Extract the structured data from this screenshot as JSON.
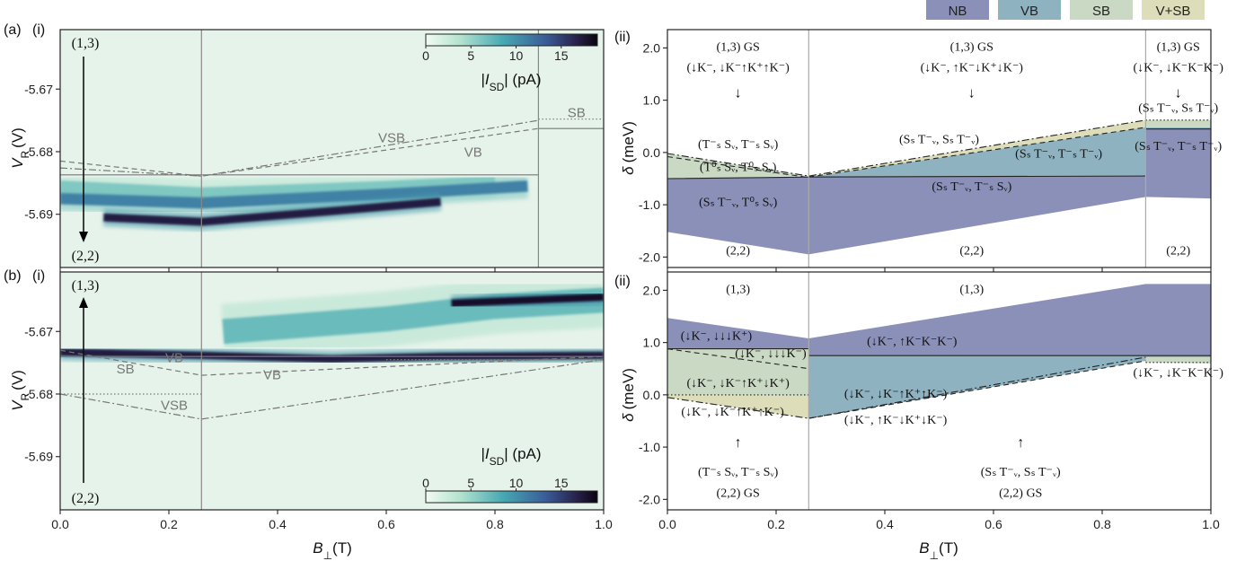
{
  "colors": {
    "NB": "#8a90b8",
    "VB": "#8fb2c1",
    "SB": "#cad9c3",
    "VSB": "#ddddba",
    "map_bg": "#e6f3ea",
    "line_grey": "#888888"
  },
  "legend": {
    "NB": "NB",
    "VB": "VB",
    "SB": "SB",
    "VSB": "V+SB"
  },
  "labels": {
    "a": "(a)",
    "b": "(b)",
    "i": "(i)",
    "ii": "(ii)",
    "xlabel_main": "B",
    "xlabel_sub": "⊥",
    "xlabel_unit": "(T)",
    "ylabel_left_main": "V",
    "ylabel_left_sub": "R",
    "ylabel_left_unit": "(V)",
    "ylabel_right_main": "δ",
    "ylabel_right_unit": "(meV)",
    "cbar_label_pre": "|I",
    "cbar_label_sub": "SD",
    "cbar_label_post": "| (pA)"
  },
  "chart_data": [
    {
      "panel": "a(i)",
      "type": "heatmap",
      "xlabel": "B⊥(T)",
      "ylabel": "VR (V)",
      "xlim": [
        0.0,
        1.0
      ],
      "ylim": [
        -5.6985,
        -5.6605
      ],
      "y_ticks": [
        -5.67,
        -5.68,
        -5.69
      ],
      "y_tick_labels": [
        "-5.67",
        "-5.68",
        "-5.69"
      ],
      "colorbar": {
        "label": "|ISD| (pA)",
        "ticks": [
          0,
          5,
          10,
          15
        ],
        "range": [
          0,
          19
        ]
      },
      "vertical_lines": [
        0.26,
        0.88
      ],
      "state_labels": [
        "(1,3)",
        "(2,2)"
      ],
      "line_labels": [
        "VSB",
        "VB",
        "SB"
      ],
      "guide_lines": [
        {
          "name": "VB",
          "style": "solid",
          "points": [
            [
              0.0,
              -5.6837
            ],
            [
              0.88,
              -5.6837
            ]
          ]
        },
        {
          "name": "SB",
          "style": "solid",
          "points": [
            [
              0.88,
              -5.6763
            ],
            [
              1.0,
              -5.6763
            ]
          ]
        },
        {
          "name": "SB-dashed",
          "style": "dashed",
          "points": [
            [
              0.0,
              -5.6815
            ],
            [
              0.26,
              -5.6839
            ],
            [
              0.88,
              -5.6763
            ]
          ]
        },
        {
          "name": "VSB",
          "style": "dashdot",
          "points": [
            [
              0.0,
              -5.6826
            ],
            [
              0.26,
              -5.6839
            ],
            [
              0.88,
              -5.675
            ]
          ]
        },
        {
          "name": "SB-dotted",
          "style": "dotted",
          "points": [
            [
              0.88,
              -5.6748
            ],
            [
              1.0,
              -5.6748
            ]
          ]
        }
      ],
      "bright_traces": [
        {
          "points": [
            [
              0.0,
              -5.6857
            ],
            [
              0.26,
              -5.6868
            ],
            [
              0.6,
              -5.6858
            ],
            [
              0.8,
              -5.685
            ]
          ],
          "width_V": 0.0022,
          "level": 6
        },
        {
          "points": [
            [
              0.0,
              -5.6875
            ],
            [
              0.26,
              -5.6882
            ],
            [
              0.6,
              -5.6868
            ],
            [
              0.86,
              -5.6855
            ]
          ],
          "width_V": 0.0018,
          "level": 11
        },
        {
          "points": [
            [
              0.08,
              -5.6905
            ],
            [
              0.26,
              -5.6912
            ],
            [
              0.5,
              -5.6895
            ],
            [
              0.7,
              -5.688
            ]
          ],
          "width_V": 0.0013,
          "level": 17
        },
        {
          "points": [
            [
              0.89,
              -5.6855
            ],
            [
              1.0,
              -5.6855
            ]
          ],
          "width_V": 0.0012,
          "level": 17
        }
      ]
    },
    {
      "panel": "b(i)",
      "type": "heatmap",
      "xlabel": "B⊥(T)",
      "ylabel": "VR (V)",
      "xlim": [
        0.0,
        1.0
      ],
      "ylim": [
        -5.6985,
        -5.6605
      ],
      "y_ticks": [
        -5.67,
        -5.68,
        -5.69
      ],
      "y_tick_labels": [
        "-5.67",
        "-5.68",
        "-5.69"
      ],
      "colorbar": {
        "label": "|ISD| (pA)",
        "ticks": [
          0,
          5,
          10,
          15
        ],
        "range": [
          0,
          19
        ]
      },
      "vertical_lines": [
        0.26
      ],
      "state_labels": [
        "(1,3)",
        "(2,2)"
      ],
      "line_labels": [
        "SB",
        "VB",
        "VB",
        "VSB"
      ],
      "guide_lines": [
        {
          "name": "VB",
          "style": "solid",
          "points": [
            [
              0.0,
              -5.674
            ],
            [
              1.0,
              -5.674
            ]
          ]
        },
        {
          "name": "SB-dotted",
          "style": "dotted",
          "points": [
            [
              0.0,
              -5.68
            ],
            [
              0.26,
              -5.68
            ]
          ]
        },
        {
          "name": "SB-dashed",
          "style": "dashed",
          "points": [
            [
              0.0,
              -5.673
            ],
            [
              0.26,
              -5.677
            ],
            [
              1.0,
              -5.674
            ]
          ]
        },
        {
          "name": "VSB",
          "style": "dashdot",
          "points": [
            [
              0.0,
              -5.68
            ],
            [
              0.26,
              -5.684
            ],
            [
              1.0,
              -5.6745
            ]
          ]
        },
        {
          "name": "upper-dotted",
          "style": "dotted",
          "points": [
            [
              0.6,
              -5.6745
            ],
            [
              1.0,
              -5.6745
            ]
          ]
        }
      ],
      "bright_traces": [
        {
          "points": [
            [
              0.0,
              -5.6733
            ],
            [
              0.26,
              -5.6738
            ],
            [
              0.5,
              -5.6744
            ],
            [
              0.7,
              -5.674
            ],
            [
              1.0,
              -5.6738
            ]
          ],
          "width_V": 0.0012,
          "level": 17
        },
        {
          "points": [
            [
              0.3,
              -5.67
            ],
            [
              0.6,
              -5.668
            ],
            [
              0.8,
              -5.666
            ],
            [
              1.0,
              -5.665
            ]
          ],
          "width_V": 0.004,
          "level": 7
        },
        {
          "points": [
            [
              0.72,
              -5.6655
            ],
            [
              1.0,
              -5.6645
            ]
          ],
          "width_V": 0.0012,
          "level": 18
        }
      ]
    },
    {
      "panel": "a(ii)",
      "type": "area",
      "xlabel": "B⊥(T)",
      "ylabel": "δ (meV)",
      "xlim": [
        0.0,
        1.0
      ],
      "ylim": [
        -2.2,
        2.35
      ],
      "y_ticks": [
        2.0,
        1.0,
        0.0,
        -1.0,
        -2.0
      ],
      "y_tick_labels": [
        "2.0",
        "1.0",
        "0.0",
        "-1.0",
        "-2.0"
      ],
      "vertical_lines": [
        0.26,
        0.88
      ],
      "regions": [
        {
          "name": "NB",
          "polygon": [
            [
              0.0,
              -0.5
            ],
            [
              0.26,
              -0.47
            ],
            [
              0.88,
              -0.45
            ],
            [
              0.88,
              0.45
            ],
            [
              1.0,
              0.45
            ],
            [
              1.0,
              -0.88
            ],
            [
              0.88,
              -0.85
            ],
            [
              0.26,
              -1.95
            ],
            [
              0.0,
              -1.52
            ]
          ]
        },
        {
          "name": "VB",
          "polygon": [
            [
              0.26,
              -0.47
            ],
            [
              0.88,
              -0.45
            ],
            [
              0.88,
              0.45
            ],
            [
              1.0,
              0.45
            ],
            [
              1.0,
              0.48
            ],
            [
              0.88,
              0.48
            ]
          ]
        },
        {
          "name": "SB",
          "polygon": [
            [
              0.0,
              -0.02
            ],
            [
              0.26,
              -0.45
            ],
            [
              0.0,
              -0.5
            ]
          ]
        },
        {
          "name": "VSB",
          "polygon": [
            [
              0.26,
              -0.45
            ],
            [
              0.88,
              0.62
            ],
            [
              0.88,
              0.48
            ],
            [
              0.26,
              -0.47
            ]
          ]
        },
        {
          "name": "SB-top",
          "polygon": [
            [
              0.88,
              0.48
            ],
            [
              1.0,
              0.48
            ],
            [
              1.0,
              0.62
            ],
            [
              0.88,
              0.62
            ]
          ]
        }
      ],
      "guide_lines": [
        {
          "style": "solid",
          "points": [
            [
              0.0,
              -0.5
            ],
            [
              0.26,
              -0.47
            ],
            [
              0.88,
              -0.45
            ]
          ]
        },
        {
          "style": "solid",
          "points": [
            [
              0.88,
              0.45
            ],
            [
              1.0,
              0.45
            ]
          ]
        },
        {
          "style": "dashed",
          "points": [
            [
              0.26,
              -0.47
            ],
            [
              0.88,
              0.48
            ]
          ]
        },
        {
          "style": "dashdot",
          "points": [
            [
              0.0,
              -0.02
            ],
            [
              0.26,
              -0.45
            ],
            [
              0.88,
              0.62
            ]
          ]
        },
        {
          "style": "dashed",
          "points": [
            [
              0.0,
              -0.08
            ],
            [
              0.26,
              -0.48
            ]
          ]
        },
        {
          "style": "dotted",
          "points": [
            [
              0.88,
              0.62
            ],
            [
              1.0,
              0.62
            ]
          ]
        }
      ],
      "annotations": [
        {
          "text": "(1,3) GS",
          "x": 0.13,
          "y": 1.95
        },
        {
          "text": "(↓K⁻, ↓K⁻↑K⁺↑K⁻)",
          "x": 0.13,
          "y": 1.55
        },
        {
          "text": "↓",
          "x": 0.13,
          "y": 1.05
        },
        {
          "text": "(1,3) GS",
          "x": 0.56,
          "y": 1.95
        },
        {
          "text": "(↓K⁻, ↑K⁻↓K⁺↓K⁻)",
          "x": 0.56,
          "y": 1.55
        },
        {
          "text": "↓",
          "x": 0.56,
          "y": 1.05
        },
        {
          "text": "(1,3) GS",
          "x": 0.94,
          "y": 1.95
        },
        {
          "text": "(↓K⁻, ↓K⁻K⁻K⁻)",
          "x": 0.94,
          "y": 1.55
        },
        {
          "text": "↓",
          "x": 0.94,
          "y": 1.05
        },
        {
          "text": "(Sₛ T⁻ᵥ, Sₛ T⁻ᵥ)",
          "x": 0.94,
          "y": 0.78
        },
        {
          "text": "(T⁻ₛ Sᵥ, T⁻ₛ Sᵥ)",
          "x": 0.13,
          "y": 0.08
        },
        {
          "text": "(T⁰ₛ Sᵥ, T⁰ₛ Sᵥ)",
          "x": 0.13,
          "y": -0.35
        },
        {
          "text": "(Sₛ T⁻ᵥ, T⁰ₛ Sᵥ)",
          "x": 0.13,
          "y": -1.02
        },
        {
          "text": "(Sₛ T⁻ᵥ, Sₛ T⁻ᵥ)",
          "x": 0.5,
          "y": 0.18
        },
        {
          "text": "(Sₛ T⁻ᵥ, T⁻ₛ T⁻ᵥ)",
          "x": 0.72,
          "y": -0.1
        },
        {
          "text": "(Sₛ T⁻ᵥ, T⁻ₛ Sᵥ)",
          "x": 0.56,
          "y": -0.72
        },
        {
          "text": "(Sₛ T⁻ᵥ, T⁻ₛ T⁻ᵥ)",
          "x": 0.94,
          "y": 0.05
        },
        {
          "text": "(2,2)",
          "x": 0.13,
          "y": -1.95
        },
        {
          "text": "(2,2)",
          "x": 0.56,
          "y": -1.95
        },
        {
          "text": "(2,2)",
          "x": 0.94,
          "y": -1.95
        }
      ]
    },
    {
      "panel": "b(ii)",
      "type": "area",
      "xlabel": "B⊥(T)",
      "ylabel": "δ (meV)",
      "xlim": [
        0.0,
        1.0
      ],
      "ylim": [
        -2.2,
        2.35
      ],
      "x_ticks": [
        0.0,
        0.2,
        0.4,
        0.6,
        0.8,
        1.0
      ],
      "x_tick_labels": [
        "0.0",
        "0.2",
        "0.4",
        "0.6",
        "0.8",
        "1.0"
      ],
      "y_ticks": [
        2.0,
        1.0,
        0.0,
        -1.0,
        -2.0
      ],
      "y_tick_labels": [
        "2.0",
        "1.0",
        "0.0",
        "-1.0",
        "-2.0"
      ],
      "vertical_lines": [
        0.26
      ],
      "regions": [
        {
          "name": "NB",
          "polygon": [
            [
              0.0,
              1.47
            ],
            [
              0.26,
              1.08
            ],
            [
              0.88,
              2.12
            ],
            [
              1.0,
              2.12
            ],
            [
              1.0,
              0.75
            ],
            [
              0.26,
              0.75
            ],
            [
              0.26,
              0.88
            ],
            [
              0.0,
              0.88
            ]
          ]
        },
        {
          "name": "VB",
          "polygon": [
            [
              0.26,
              0.75
            ],
            [
              1.0,
              0.75
            ],
            [
              1.0,
              0.65
            ],
            [
              0.88,
              0.65
            ],
            [
              0.26,
              -0.45
            ],
            [
              0.26,
              0.88
            ]
          ]
        },
        {
          "name": "SB",
          "polygon": [
            [
              0.0,
              0.88
            ],
            [
              0.26,
              0.88
            ],
            [
              0.26,
              -0.02
            ],
            [
              0.0,
              0.0
            ]
          ]
        },
        {
          "name": "VSB",
          "polygon": [
            [
              0.0,
              0.0
            ],
            [
              0.26,
              -0.02
            ],
            [
              0.26,
              -0.45
            ],
            [
              0.0,
              -0.05
            ]
          ]
        },
        {
          "name": "SB-right",
          "polygon": [
            [
              0.88,
              0.72
            ],
            [
              1.0,
              0.72
            ],
            [
              1.0,
              0.6
            ],
            [
              0.88,
              0.62
            ]
          ]
        }
      ],
      "guide_lines": [
        {
          "style": "solid",
          "points": [
            [
              0.0,
              0.88
            ],
            [
              0.26,
              0.88
            ]
          ]
        },
        {
          "style": "solid",
          "points": [
            [
              0.26,
              0.75
            ],
            [
              1.0,
              0.75
            ]
          ]
        },
        {
          "style": "dotted",
          "points": [
            [
              0.0,
              0.0
            ],
            [
              0.26,
              0.0
            ]
          ]
        },
        {
          "style": "dashed",
          "points": [
            [
              0.0,
              0.88
            ],
            [
              0.26,
              0.5
            ]
          ]
        },
        {
          "style": "dashdot",
          "points": [
            [
              0.0,
              -0.05
            ],
            [
              0.26,
              -0.45
            ],
            [
              0.88,
              0.72
            ]
          ]
        },
        {
          "style": "dashed",
          "points": [
            [
              0.26,
              -0.45
            ],
            [
              0.88,
              0.65
            ]
          ]
        },
        {
          "style": "dotted",
          "points": [
            [
              0.88,
              0.62
            ],
            [
              1.0,
              0.62
            ]
          ]
        }
      ],
      "annotations": [
        {
          "text": "(1,3)",
          "x": 0.13,
          "y": 1.95
        },
        {
          "text": "(1,3)",
          "x": 0.56,
          "y": 1.95
        },
        {
          "text": "(↓K⁻, ↓↓↓K⁺)",
          "x": 0.09,
          "y": 1.05
        },
        {
          "text": "(↓K⁻, ↓↓↓K⁻)",
          "x": 0.19,
          "y": 0.72
        },
        {
          "text": "(↓K⁻, ↑K⁻K⁻K⁻)",
          "x": 0.45,
          "y": 0.95
        },
        {
          "text": "(↓K⁻, ↓K⁻↑K⁺↓K⁺)",
          "x": 0.13,
          "y": 0.15
        },
        {
          "text": "(↓K⁻, ↓K⁻↑K⁺↑K⁻)",
          "x": 0.12,
          "y": -0.4
        },
        {
          "text": "(↓K⁻, ↓K⁻↑K⁺↑K⁻)",
          "x": 0.42,
          "y": -0.05
        },
        {
          "text": "(↓K⁻, ↑K⁻↓K⁺↓K⁻)",
          "x": 0.42,
          "y": -0.55
        },
        {
          "text": "(↓K⁻, ↓K⁻K⁻K⁻)",
          "x": 0.94,
          "y": 0.35
        },
        {
          "text": "↑",
          "x": 0.13,
          "y": -1.0
        },
        {
          "text": "↑",
          "x": 0.65,
          "y": -1.0
        },
        {
          "text": "(T⁻ₛ Sᵥ, T⁻ₛ Sᵥ)",
          "x": 0.13,
          "y": -1.55
        },
        {
          "text": "(2,2) GS",
          "x": 0.13,
          "y": -1.95
        },
        {
          "text": "(Sₛ T⁻ᵥ, Sₛ T⁻ᵥ)",
          "x": 0.65,
          "y": -1.55
        },
        {
          "text": "(2,2) GS",
          "x": 0.65,
          "y": -1.95
        }
      ]
    }
  ]
}
